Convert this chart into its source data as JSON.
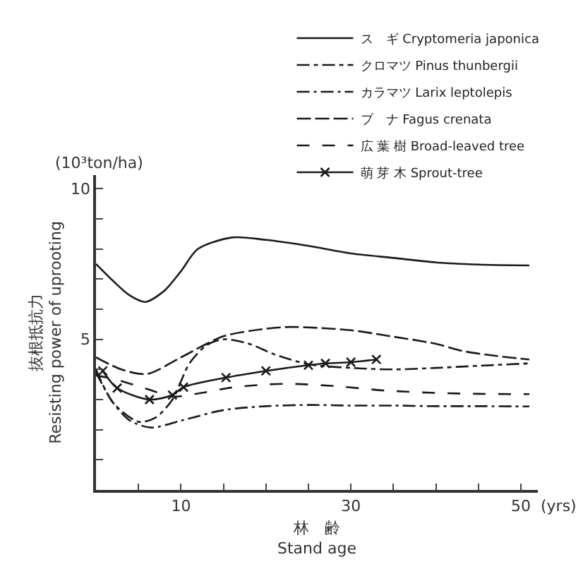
{
  "chart_data": {
    "type": "line",
    "xlabel": "林　齢\nStand age",
    "ylabel": "抜根抵抗力\nResisting power of uprooting",
    "annotations": [
      "(10³ton/ha)",
      "(yrs)"
    ],
    "xlim": [
      0,
      52
    ],
    "xticks": [
      {
        "value": 5,
        "label": null
      },
      10,
      {
        "value": 15,
        "label": null
      },
      {
        "value": 20,
        "label": null
      },
      {
        "value": 25,
        "label": null
      },
      30,
      {
        "value": 35,
        "label": null
      },
      {
        "value": 40,
        "label": null
      },
      {
        "value": 45,
        "label": null
      },
      50
    ],
    "ylim": [
      0,
      10.45
    ],
    "yticks": [
      {
        "value": 1,
        "label": null
      },
      {
        "value": 2,
        "label": null
      },
      {
        "value": 3,
        "label": null
      },
      {
        "value": 4,
        "label": null
      },
      5,
      {
        "value": 6,
        "label": null
      },
      {
        "value": 7,
        "label": null
      },
      {
        "value": 8,
        "label": null
      },
      {
        "value": 9,
        "label": null
      },
      10
    ],
    "grid": false,
    "legend": "top right",
    "tick_labels": true,
    "series": [
      {
        "name": "ス　ギ Cryptomeria japonica",
        "color": "#1a1a1a",
        "line_style": "solid",
        "marker": "none",
        "x": [
          0,
          2,
          4,
          5.8,
          8,
          10,
          12,
          16,
          20,
          25,
          30,
          35,
          40,
          45,
          51
        ],
        "values": [
          7.5,
          6.94,
          6.45,
          6.24,
          6.6,
          7.26,
          8.0,
          8.38,
          8.3,
          8.1,
          7.85,
          7.7,
          7.55,
          7.48,
          7.45
        ]
      },
      {
        "name": "クロマツ Pinus thunbergii",
        "color": "#1a1a1a",
        "line_style": "dashdot",
        "marker": "none",
        "x": [
          0,
          2,
          5,
          7,
          9,
          11,
          13,
          15,
          18,
          21,
          25,
          30,
          35,
          40,
          45,
          51
        ],
        "values": [
          4.0,
          2.9,
          2.26,
          2.4,
          3.0,
          4.2,
          4.8,
          5.0,
          4.85,
          4.5,
          4.17,
          4.05,
          4.0,
          4.05,
          4.12,
          4.2
        ]
      },
      {
        "name": "カラマツ Larix leptolepis",
        "color": "#1a1a1a",
        "line_style": "longdashdot",
        "marker": "none",
        "x": [
          0,
          2,
          4,
          6.5,
          10,
          15,
          20,
          25,
          30,
          35,
          40,
          45,
          51
        ],
        "values": [
          3.9,
          2.9,
          2.3,
          2.07,
          2.3,
          2.65,
          2.78,
          2.82,
          2.8,
          2.8,
          2.78,
          2.78,
          2.77
        ]
      },
      {
        "name": "ブ　ナ Fagus crenata",
        "color": "#1a1a1a",
        "line_style": "longdash",
        "marker": "none",
        "x": [
          0,
          3,
          6,
          10,
          15,
          20,
          23,
          30,
          34,
          40,
          43,
          47,
          51
        ],
        "values": [
          4.4,
          4.0,
          3.85,
          4.4,
          5.1,
          5.35,
          5.41,
          5.3,
          5.13,
          4.85,
          4.62,
          4.45,
          4.33
        ]
      },
      {
        "name": "広 葉 樹 Broad-leaved tree",
        "color": "#1a1a1a",
        "line_style": "dashed",
        "marker": "none",
        "x": [
          0,
          2.4,
          6,
          9,
          12,
          16,
          20,
          23,
          28,
          34,
          40,
          45,
          51
        ],
        "values": [
          3.8,
          3.66,
          3.35,
          3.1,
          3.2,
          3.4,
          3.5,
          3.52,
          3.45,
          3.3,
          3.22,
          3.19,
          3.18
        ]
      },
      {
        "name": "萌 芽 木 Sprout-tree",
        "color": "#1a1a1a",
        "line_style": "solid",
        "marker": "cross",
        "x": [
          0.8,
          2.5,
          6.3,
          9,
          10.3,
          15.3,
          20,
          25,
          27,
          30,
          33
        ],
        "values": [
          3.95,
          3.38,
          3.0,
          3.15,
          3.41,
          3.73,
          3.95,
          4.14,
          4.2,
          4.24,
          4.33
        ]
      }
    ]
  }
}
